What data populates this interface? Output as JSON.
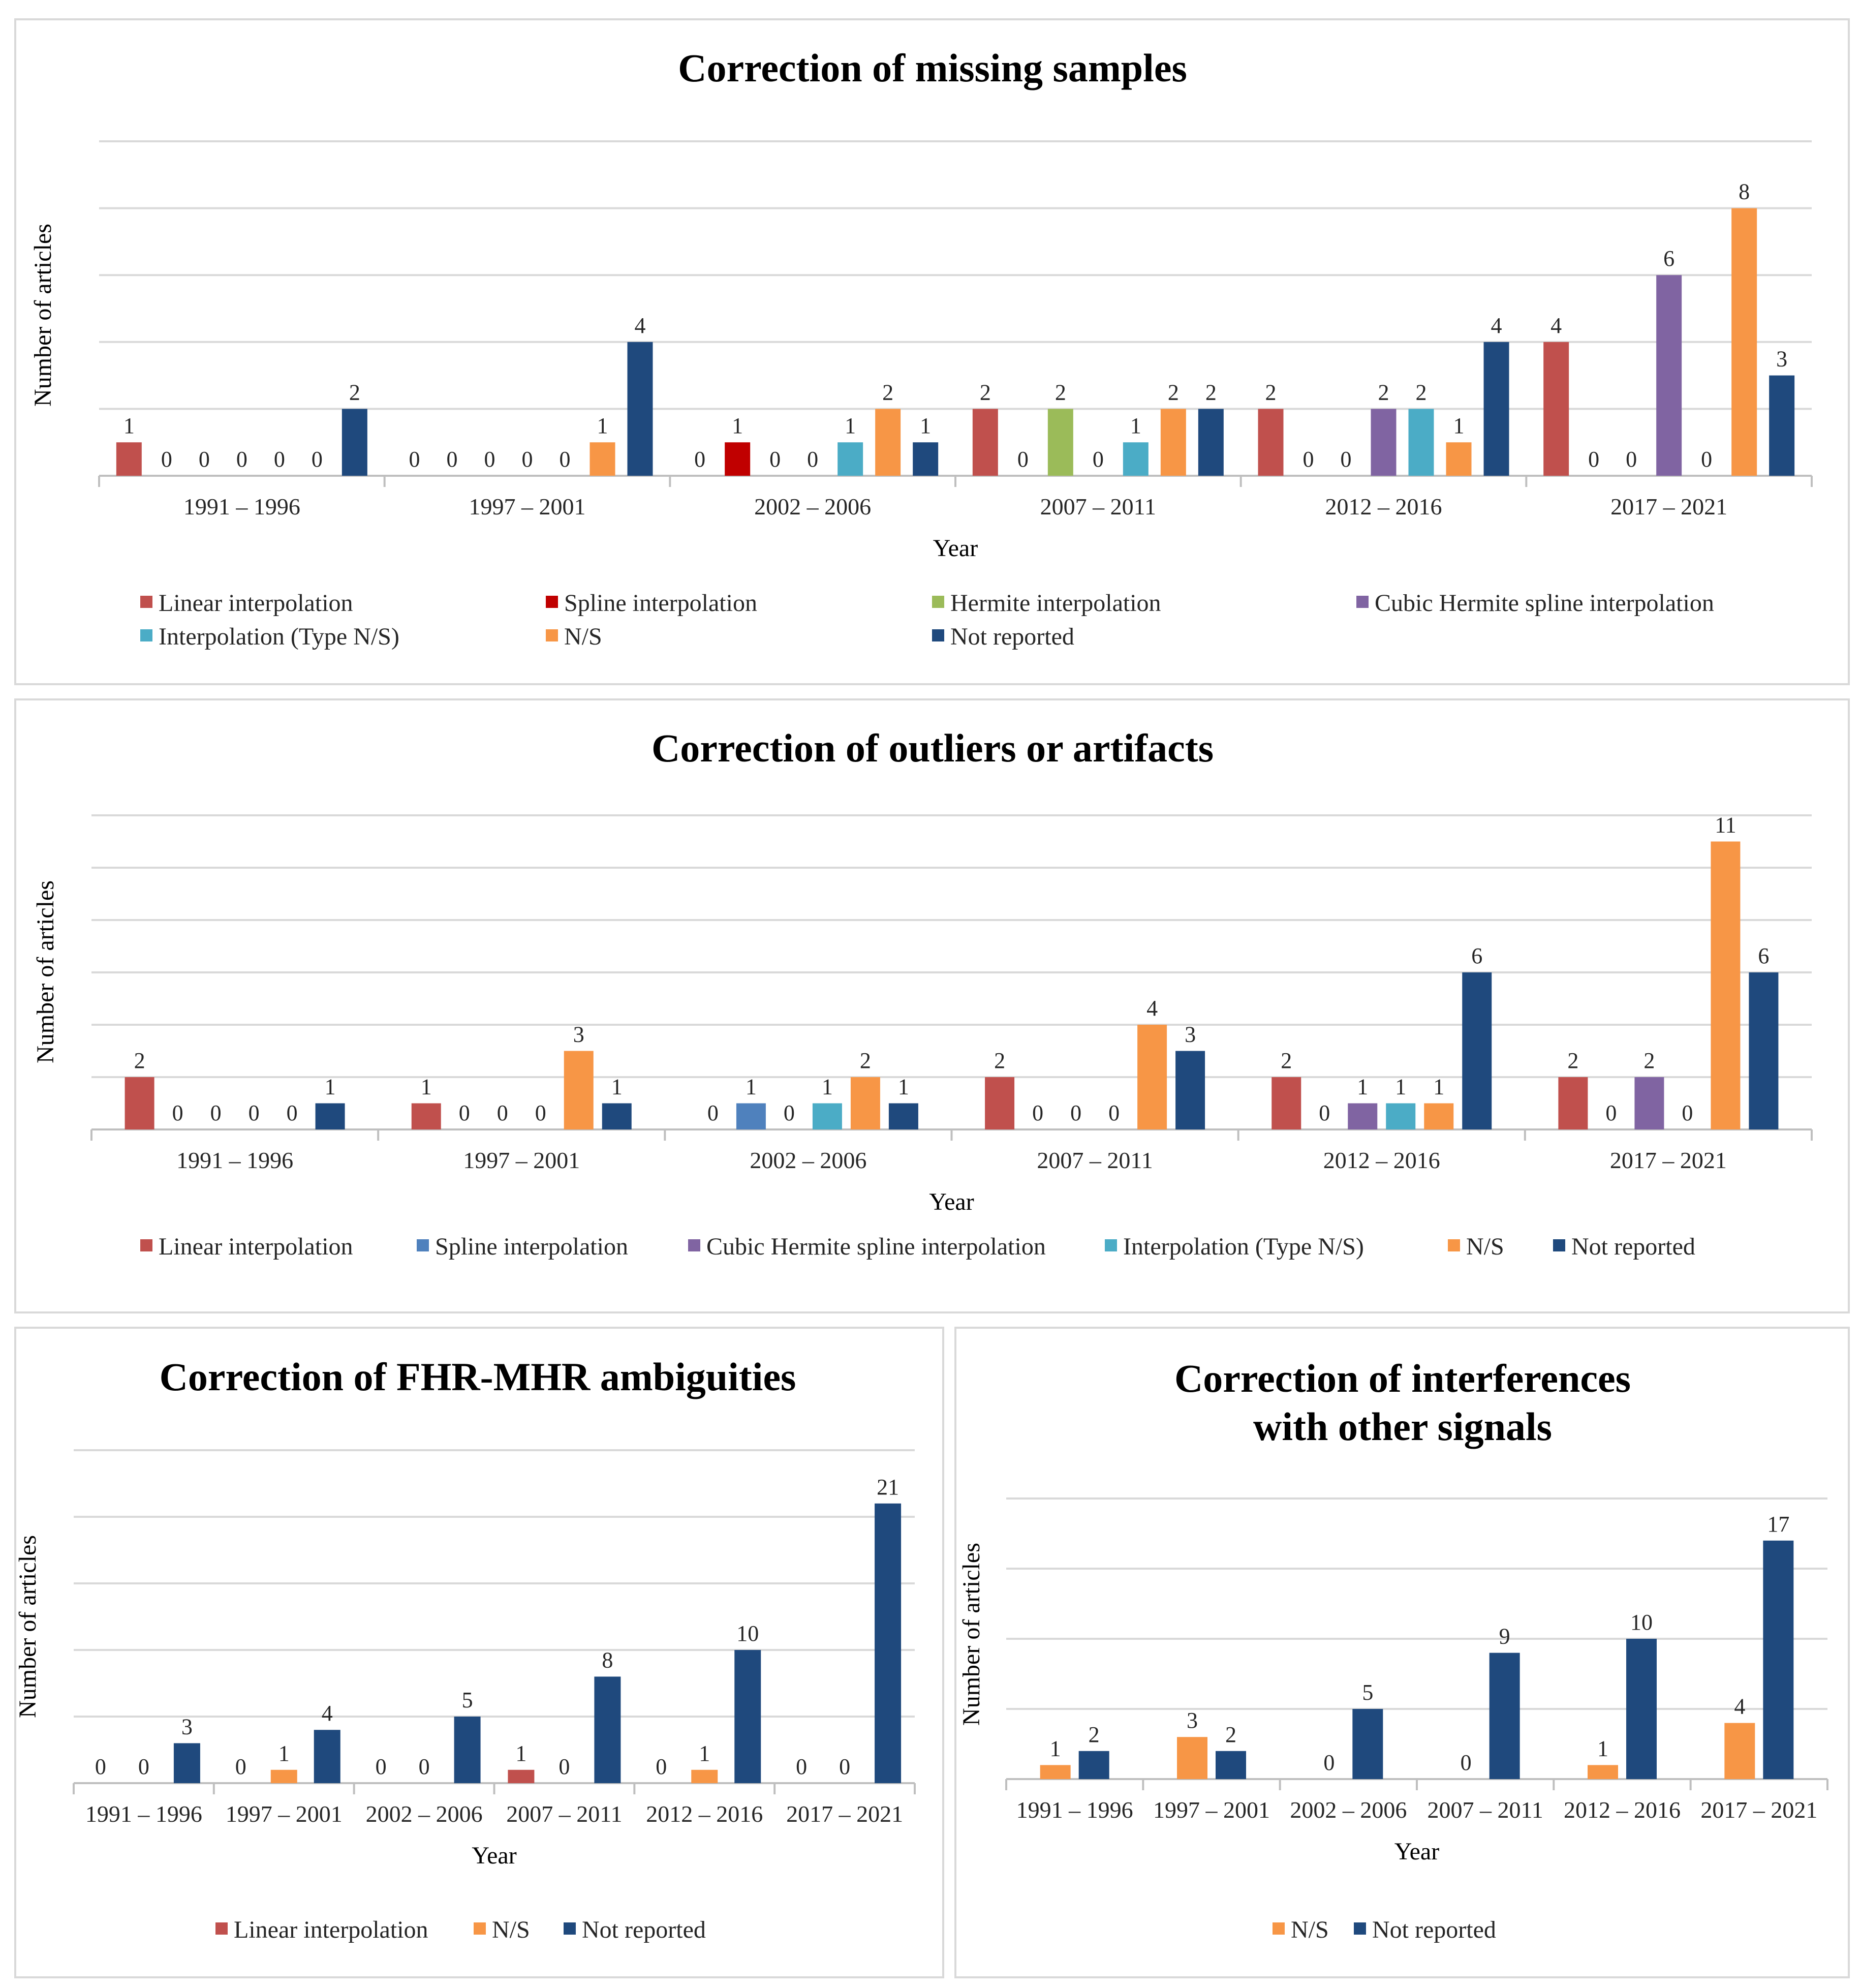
{
  "colors": {
    "Linear interpolation": "#c0504d",
    "Spline interpolation (missing)": "#c00000",
    "Spline interpolation": "#4f81bd",
    "Hermite interpolation": "#9bbb59",
    "Cubic Hermite spline interpolation": "#8064a2",
    "Interpolation (Type N/S)": "#4bacc6",
    "N/S": "#f79646",
    "Not reported": "#1f497d"
  },
  "chart_data": [
    {
      "type": "bar",
      "title": "Correction of missing samples",
      "xlabel": "Year",
      "ylabel": "Number of articles",
      "ylim": [
        0,
        10
      ],
      "grid": true,
      "legend_position": "bottom",
      "categories": [
        "1991 – 1996",
        "1997 – 2001",
        "2002 – 2006",
        "2007 – 2011",
        "2012 – 2016",
        "2017 – 2021"
      ],
      "series": [
        {
          "name": "Linear interpolation",
          "color": "#c0504d",
          "values": [
            1,
            0,
            0,
            2,
            2,
            4
          ]
        },
        {
          "name": "Spline interpolation",
          "color": "#c00000",
          "values": [
            0,
            0,
            1,
            0,
            0,
            0
          ]
        },
        {
          "name": "Hermite interpolation",
          "color": "#9bbb59",
          "values": [
            0,
            0,
            0,
            2,
            0,
            0
          ]
        },
        {
          "name": "Cubic Hermite spline interpolation",
          "color": "#8064a2",
          "values": [
            0,
            0,
            0,
            0,
            2,
            6
          ]
        },
        {
          "name": "Interpolation (Type N/S)",
          "color": "#4bacc6",
          "values": [
            0,
            0,
            1,
            1,
            2,
            0
          ]
        },
        {
          "name": "N/S",
          "color": "#f79646",
          "values": [
            0,
            1,
            2,
            2,
            1,
            8
          ]
        },
        {
          "name": "Not reported",
          "color": "#1f497d",
          "values": [
            2,
            4,
            1,
            2,
            4,
            3
          ]
        }
      ],
      "labels": [
        [
          1,
          0,
          0,
          0,
          0,
          0,
          2
        ],
        [
          0,
          0,
          0,
          0,
          0,
          1,
          4
        ],
        [
          0,
          1,
          0,
          0,
          1,
          2,
          1
        ],
        [
          2,
          0,
          2,
          0,
          1,
          2,
          2
        ],
        [
          2,
          0,
          0,
          2,
          2,
          1,
          4
        ],
        [
          4,
          0,
          0,
          6,
          0,
          8,
          3
        ]
      ]
    },
    {
      "type": "bar",
      "title": "Correction of outliers or artifacts",
      "xlabel": "Year",
      "ylabel": "Number of articles",
      "ylim": [
        0,
        12
      ],
      "grid": true,
      "legend_position": "bottom",
      "categories": [
        "1991 – 1996",
        "1997 – 2001",
        "2002 – 2006",
        "2007 – 2011",
        "2012 – 2016",
        "2017 – 2021"
      ],
      "series": [
        {
          "name": "Linear interpolation",
          "color": "#c0504d",
          "values": [
            2,
            1,
            0,
            2,
            2,
            2
          ]
        },
        {
          "name": "Spline interpolation",
          "color": "#4f81bd",
          "values": [
            0,
            0,
            1,
            0,
            0,
            0
          ]
        },
        {
          "name": "Cubic Hermite spline interpolation",
          "color": "#8064a2",
          "values": [
            0,
            0,
            0,
            0,
            1,
            2
          ]
        },
        {
          "name": "Interpolation (Type N/S)",
          "color": "#4bacc6",
          "values": [
            0,
            0,
            1,
            0,
            1,
            0
          ]
        },
        {
          "name": "N/S",
          "color": "#f79646",
          "values": [
            0,
            3,
            2,
            4,
            1,
            11
          ]
        },
        {
          "name": "Not reported",
          "color": "#1f497d",
          "values": [
            1,
            1,
            1,
            3,
            6,
            6
          ]
        }
      ],
      "labels": [
        [
          2,
          0,
          0,
          0,
          0,
          1
        ],
        [
          1,
          0,
          0,
          0,
          3,
          1
        ],
        [
          0,
          1,
          0,
          1,
          2,
          1
        ],
        [
          2,
          0,
          0,
          0,
          4,
          3
        ],
        [
          2,
          0,
          1,
          1,
          1,
          6
        ],
        [
          2,
          0,
          2,
          0,
          11,
          6
        ]
      ]
    },
    {
      "type": "bar",
      "title": "Correction of FHR-MHR ambiguities",
      "xlabel": "Year",
      "ylabel": "Number of articles",
      "ylim": [
        0,
        25
      ],
      "grid": true,
      "legend_position": "bottom",
      "categories": [
        "1991 – 1996",
        "1997 – 2001",
        "2002 – 2006",
        "2007 – 2011",
        "2012 – 2016",
        "2017 – 2021"
      ],
      "series": [
        {
          "name": "Linear interpolation",
          "color": "#c0504d",
          "values": [
            0,
            0,
            0,
            1,
            0,
            0
          ]
        },
        {
          "name": "N/S",
          "color": "#f79646",
          "values": [
            0,
            1,
            0,
            0,
            1,
            0
          ]
        },
        {
          "name": "Not reported",
          "color": "#1f497d",
          "values": [
            3,
            4,
            5,
            8,
            10,
            21
          ]
        }
      ],
      "labels": [
        [
          0,
          0,
          3
        ],
        [
          0,
          1,
          4
        ],
        [
          0,
          0,
          5
        ],
        [
          1,
          0,
          8
        ],
        [
          0,
          1,
          10
        ],
        [
          0,
          0,
          21
        ]
      ]
    },
    {
      "type": "bar",
      "title": "Correction of interferences with other signals",
      "title_lines": [
        "Correction of interferences",
        "with other signals"
      ],
      "xlabel": "Year",
      "ylabel": "Number of articles",
      "ylim": [
        0,
        20
      ],
      "grid": true,
      "legend_position": "bottom",
      "categories": [
        "1991 – 1996",
        "1997 – 2001",
        "2002 – 2006",
        "2007 – 2011",
        "2012 – 2016",
        "2017 – 2021"
      ],
      "series": [
        {
          "name": "N/S",
          "color": "#f79646",
          "values": [
            1,
            3,
            0,
            0,
            1,
            4
          ]
        },
        {
          "name": "Not reported",
          "color": "#1f497d",
          "values": [
            2,
            2,
            5,
            9,
            10,
            17
          ]
        }
      ],
      "labels": [
        [
          1,
          2
        ],
        [
          3,
          2
        ],
        [
          0,
          5
        ],
        [
          0,
          9
        ],
        [
          1,
          10
        ],
        [
          4,
          17
        ]
      ]
    }
  ]
}
